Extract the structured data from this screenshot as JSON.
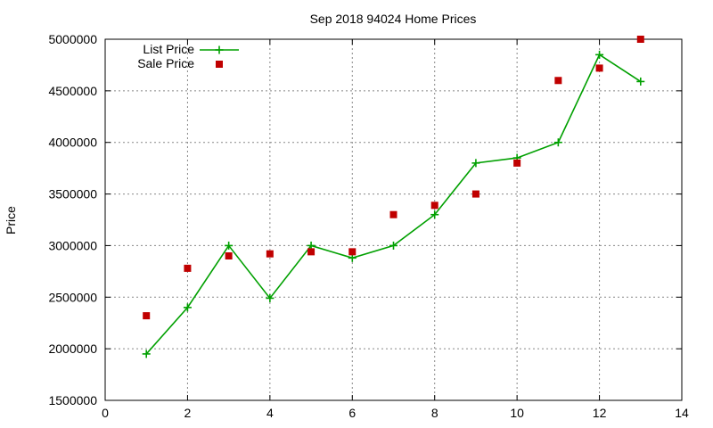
{
  "chart_data": {
    "type": "line",
    "title": "Sep 2018 94024 Home Prices",
    "xlabel": "",
    "ylabel": "Price",
    "xlim": [
      0,
      14
    ],
    "ylim": [
      1500000,
      5000000
    ],
    "xticks": [
      0,
      2,
      4,
      6,
      8,
      10,
      12,
      14
    ],
    "yticks": [
      1500000,
      2000000,
      2500000,
      3000000,
      3500000,
      4000000,
      4500000,
      5000000
    ],
    "grid": true,
    "legend_position": "top-left",
    "series": [
      {
        "name": "List Price",
        "style": "line-with-plus-markers",
        "color": "#00a000",
        "x": [
          1,
          2,
          3,
          4,
          5,
          6,
          7,
          8,
          9,
          10,
          11,
          12,
          13
        ],
        "y": [
          1950000,
          2400000,
          3000000,
          2490000,
          3000000,
          2880000,
          3000000,
          3300000,
          3800000,
          3850000,
          4000000,
          4850000,
          4590000
        ]
      },
      {
        "name": "Sale Price",
        "style": "square-markers",
        "color": "#c00000",
        "x": [
          1,
          2,
          3,
          4,
          5,
          6,
          7,
          8,
          9,
          10,
          11,
          12,
          13
        ],
        "y": [
          2320000,
          2780000,
          2900000,
          2920000,
          2940000,
          2940000,
          3300000,
          3390000,
          3500000,
          3800000,
          4600000,
          4720000,
          5000000
        ]
      }
    ]
  }
}
